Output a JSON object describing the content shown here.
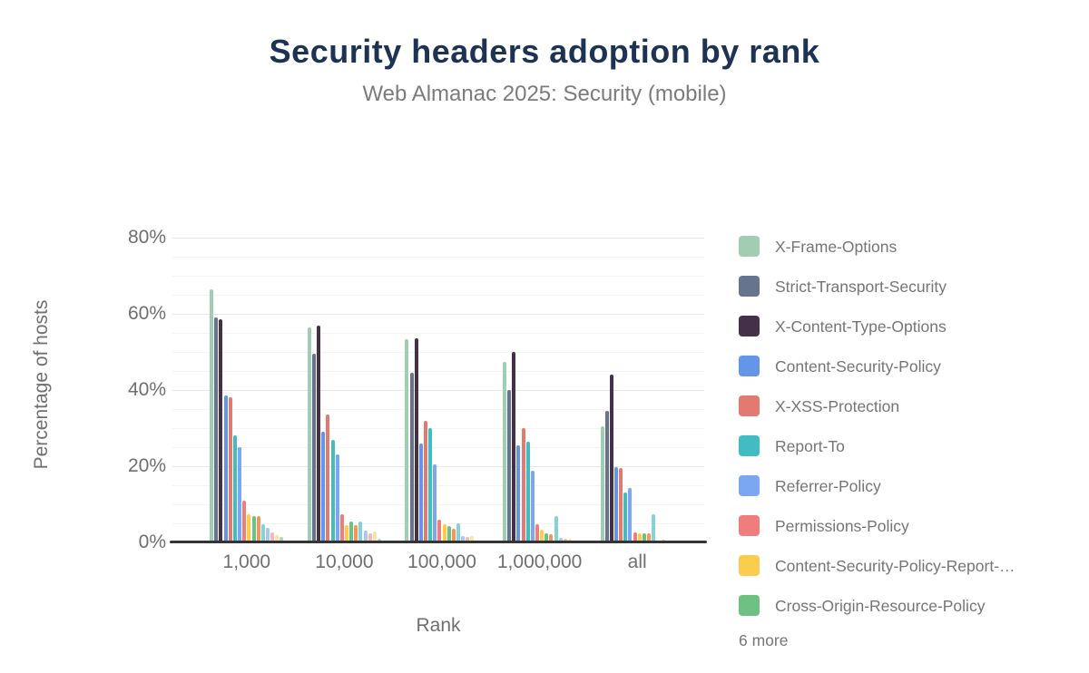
{
  "header": {
    "title": "Security headers adoption by rank",
    "subtitle": "Web Almanac 2025: Security (mobile)",
    "title_color": "#1d3354",
    "subtitle_color": "#7b7b7b"
  },
  "chart_data": {
    "type": "bar",
    "title": "Security headers adoption by rank",
    "subtitle": "Web Almanac 2025: Security (mobile)",
    "xlabel": "Rank",
    "ylabel": "Percentage of hosts",
    "ylim": [
      0,
      80
    ],
    "ytick_labels": [
      "0%",
      "20%",
      "40%",
      "60%",
      "80%"
    ],
    "ytick_major_step": 20,
    "ytick_minor_step": 5,
    "grid": true,
    "legend_position": "right",
    "legend_more_label": "6 more",
    "categories": [
      "1,000",
      "10,000",
      "100,000",
      "1,000,000",
      "all"
    ],
    "series": [
      {
        "name": "X-Frame-Options",
        "color": "#a1cdb3",
        "in_legend": true,
        "values": [
          66.5,
          56.5,
          53.3,
          47.5,
          30.5
        ]
      },
      {
        "name": "Strict-Transport-Security",
        "color": "#66748e",
        "in_legend": true,
        "values": [
          59.0,
          49.5,
          44.5,
          40.0,
          34.5
        ]
      },
      {
        "name": "X-Content-Type-Options",
        "color": "#453049",
        "in_legend": true,
        "values": [
          58.5,
          57.0,
          53.6,
          50.0,
          44.0
        ]
      },
      {
        "name": "Content-Security-Policy",
        "color": "#6495e9",
        "in_legend": true,
        "values": [
          38.5,
          29.0,
          26.0,
          25.5,
          19.7
        ]
      },
      {
        "name": "X-XSS-Protection",
        "color": "#e17b72",
        "in_legend": true,
        "values": [
          38.0,
          33.5,
          32.0,
          30.0,
          19.5
        ]
      },
      {
        "name": "Report-To",
        "color": "#41bcc3",
        "in_legend": true,
        "values": [
          28.0,
          27.0,
          30.0,
          26.5,
          13.2
        ]
      },
      {
        "name": "Referrer-Policy",
        "color": "#7ba7f2",
        "in_legend": true,
        "values": [
          25.0,
          23.0,
          20.5,
          18.7,
          14.4
        ]
      },
      {
        "name": "Permissions-Policy",
        "color": "#ee7e7c",
        "in_legend": true,
        "values": [
          11.0,
          7.5,
          6.0,
          4.7,
          2.7
        ]
      },
      {
        "name": "Content-Security-Policy-Report-…",
        "color": "#fbcd4f",
        "in_legend": true,
        "values": [
          7.5,
          4.5,
          4.8,
          3.3,
          2.3
        ]
      },
      {
        "name": "Cross-Origin-Resource-Policy",
        "color": "#6ec083",
        "in_legend": true,
        "values": [
          6.8,
          5.5,
          4.3,
          2.5,
          2.3
        ]
      },
      {
        "name": "",
        "color": "#f0985a",
        "in_legend": false,
        "values": [
          7.0,
          4.5,
          3.5,
          2.1,
          2.4
        ]
      },
      {
        "name": "",
        "color": "#87d2d9",
        "in_legend": false,
        "values": [
          4.8,
          5.5,
          5.1,
          6.9,
          7.4
        ]
      },
      {
        "name": "",
        "color": "#a8c7f3",
        "in_legend": false,
        "values": [
          3.9,
          3.0,
          1.7,
          1.1,
          0.5
        ]
      },
      {
        "name": "",
        "color": "#f6b8b7",
        "in_legend": false,
        "values": [
          2.7,
          2.3,
          1.4,
          1.0,
          0.6
        ]
      },
      {
        "name": "",
        "color": "#f9e3a5",
        "in_legend": false,
        "values": [
          1.9,
          2.8,
          1.7,
          0.9,
          0.5
        ]
      },
      {
        "name": "",
        "color": "#afd9be",
        "in_legend": false,
        "values": [
          1.4,
          1.0,
          0.4,
          0.3,
          0.2
        ]
      }
    ]
  }
}
